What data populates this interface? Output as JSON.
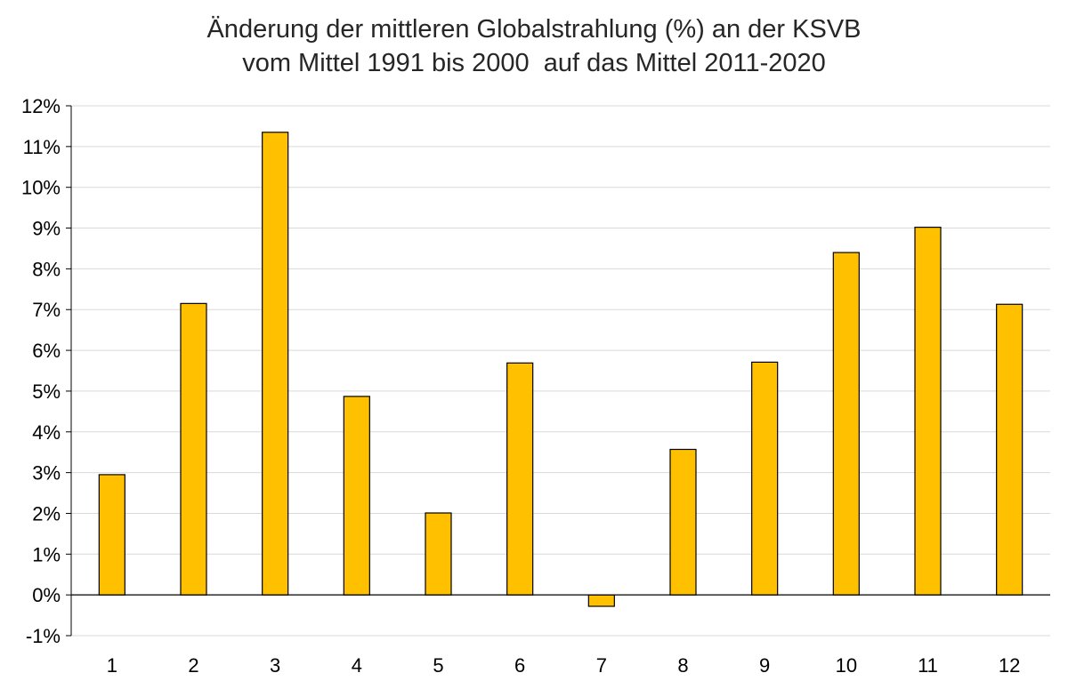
{
  "chart_data": {
    "type": "bar",
    "title": "Änderung der mittleren Globalstrahlung (%) an der KSVB",
    "subtitle": "vom Mittel 1991 bis 2000  auf das Mittel 2011-2020",
    "xlabel": "",
    "ylabel": "",
    "categories": [
      "1",
      "2",
      "3",
      "4",
      "5",
      "6",
      "7",
      "8",
      "9",
      "10",
      "11",
      "12"
    ],
    "values": [
      2.95,
      7.15,
      11.35,
      4.87,
      2.01,
      5.69,
      -0.28,
      3.57,
      5.71,
      8.4,
      9.02,
      7.13
    ],
    "ylim": [
      -1,
      12
    ],
    "yticks": [
      "-1%",
      "0%",
      "1%",
      "2%",
      "3%",
      "4%",
      "5%",
      "6%",
      "7%",
      "8%",
      "9%",
      "10%",
      "11%",
      "12%"
    ],
    "grid": true,
    "legend": "none",
    "colors": {
      "bar": "#ffc000",
      "bar_stroke": "#000000",
      "grid": "#d9d9d9",
      "axis": "#000000"
    }
  }
}
